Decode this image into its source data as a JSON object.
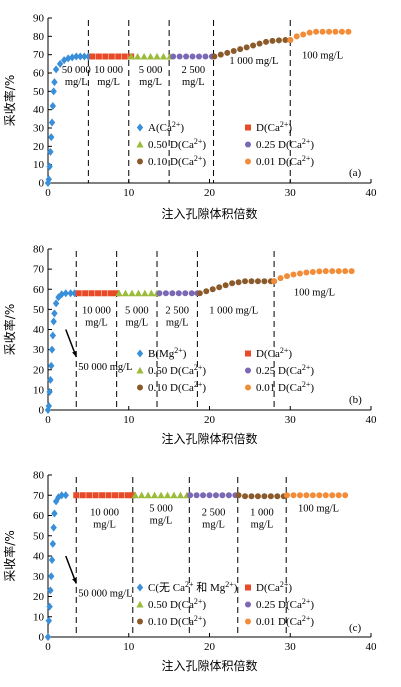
{
  "chart_data": [
    {
      "type": "scatter",
      "panel_label": "(a)",
      "xlabel": "注入孔隙体积倍数",
      "ylabel": "采收率/%",
      "xlim": [
        0,
        40
      ],
      "ylim": [
        0,
        90
      ],
      "xticks": [
        0,
        10,
        20,
        30,
        40
      ],
      "yticks": [
        0,
        10,
        20,
        30,
        40,
        50,
        60,
        70,
        80,
        90
      ],
      "stage_boundaries": [
        5,
        10,
        15,
        20.5,
        30
      ],
      "stage_labels": [
        {
          "lines": [
            "50 000",
            "mg/L"
          ],
          "x": 3.5,
          "y": 60
        },
        {
          "lines": [
            "10 000",
            "mg/L"
          ],
          "x": 7.5,
          "y": 60
        },
        {
          "lines": [
            "5 000",
            "mg/L"
          ],
          "x": 12.7,
          "y": 60
        },
        {
          "lines": [
            "2 500",
            "mg/L"
          ],
          "x": 18,
          "y": 60
        },
        {
          "lines": [
            "1 000 mg/L"
          ],
          "x": 25.5,
          "y": 65
        },
        {
          "lines": [
            "100 mg/L"
          ],
          "x": 34,
          "y": 68
        }
      ],
      "series": [
        {
          "name": "A(Ca²⁺)",
          "color": "#3A8FD9",
          "marker": "diamond",
          "x": [
            0,
            0.1,
            0.2,
            0.3,
            0.4,
            0.5,
            0.6,
            0.7,
            0.8,
            1.0,
            1.5,
            2.0,
            2.5,
            3.0,
            3.5,
            4.0,
            4.5,
            5.0
          ],
          "y": [
            0,
            2,
            9,
            17,
            25,
            33,
            42,
            50,
            55,
            62,
            65,
            67,
            68,
            68.5,
            69,
            69,
            69,
            69
          ]
        },
        {
          "name": "D(Ca²⁺)",
          "color": "#E84A27",
          "marker": "square",
          "x": [
            5.5,
            6.3,
            7.1,
            7.9,
            8.7,
            9.5,
            10.3
          ],
          "y": [
            69,
            69,
            69,
            69,
            69,
            69,
            69
          ]
        },
        {
          "name": "0.50 D(Ca²⁺)",
          "color": "#9BBB3B",
          "marker": "triangle",
          "x": [
            10.3,
            11.1,
            11.9,
            12.7,
            13.5,
            14.3,
            15.1
          ],
          "y": [
            69,
            69,
            69,
            69,
            69,
            69,
            69
          ]
        },
        {
          "name": "0.25 D(Ca²⁺)",
          "color": "#7B68B5",
          "marker": "circle",
          "x": [
            15.5,
            16.3,
            17.1,
            17.9,
            18.7,
            19.5,
            20.3
          ],
          "y": [
            69,
            69,
            69,
            69,
            69,
            69,
            69
          ]
        },
        {
          "name": "0.10 D(Ca²⁺)",
          "color": "#8B5A2B",
          "marker": "circle",
          "x": [
            20.6,
            21.4,
            22.2,
            23.0,
            23.8,
            24.6,
            25.4,
            26.2,
            27.0,
            27.8,
            28.6,
            29.4,
            30.0
          ],
          "y": [
            69,
            70,
            71,
            72,
            73,
            74,
            75,
            76,
            77,
            77.5,
            77.8,
            78,
            78
          ]
        },
        {
          "name": "0.01 D(Ca²⁺)",
          "color": "#F28C38",
          "marker": "circle",
          "x": [
            30.0,
            30.8,
            31.6,
            32.4,
            33.2,
            34.0,
            34.8,
            35.6,
            36.4,
            37.2
          ],
          "y": [
            78,
            80,
            81,
            82,
            82.5,
            82.5,
            82.5,
            82.5,
            82.5,
            82.5
          ]
        }
      ]
    },
    {
      "type": "scatter",
      "panel_label": "(b)",
      "xlabel": "注入孔隙体积倍数",
      "ylabel": "采收率/%",
      "xlim": [
        0,
        40
      ],
      "ylim": [
        0,
        80
      ],
      "xticks": [
        0,
        10,
        20,
        30,
        40
      ],
      "yticks": [
        0,
        10,
        20,
        30,
        40,
        50,
        60,
        70,
        80
      ],
      "stage_boundaries": [
        3.5,
        8.5,
        13.5,
        18.5,
        28
      ],
      "stage_labels": [
        {
          "lines": [
            "10 000",
            "mg/L"
          ],
          "x": 6,
          "y": 48
        },
        {
          "lines": [
            "5 000",
            "mg/L"
          ],
          "x": 11,
          "y": 48
        },
        {
          "lines": [
            "2 500",
            "mg/L"
          ],
          "x": 16,
          "y": 48
        },
        {
          "lines": [
            "1 000 mg/L"
          ],
          "x": 23,
          "y": 48
        },
        {
          "lines": [
            "100 mg/L"
          ],
          "x": 33,
          "y": 57
        }
      ],
      "arrow_label": "50 000 mg/L",
      "series": [
        {
          "name": "B(Mg²⁺)",
          "color": "#3A8FD9",
          "marker": "diamond",
          "x": [
            0,
            0.1,
            0.2,
            0.3,
            0.4,
            0.5,
            0.6,
            0.7,
            0.8,
            1.0,
            1.3,
            1.7,
            2.2,
            2.8,
            3.3
          ],
          "y": [
            0,
            2,
            9,
            15,
            22,
            30,
            37,
            44,
            48,
            53,
            56,
            57.5,
            58,
            58,
            58
          ]
        },
        {
          "name": "D(Ca²⁺)",
          "color": "#E84A27",
          "marker": "square",
          "x": [
            3.8,
            4.6,
            5.4,
            6.2,
            7.0,
            7.8,
            8.5
          ],
          "y": [
            58,
            58,
            58,
            58,
            58,
            58,
            58
          ]
        },
        {
          "name": "0.50 D(Ca²⁺)",
          "color": "#9BBB3B",
          "marker": "triangle",
          "x": [
            8.8,
            9.6,
            10.4,
            11.2,
            12.0,
            12.8,
            13.5
          ],
          "y": [
            58,
            58,
            58,
            58,
            58,
            58,
            58
          ]
        },
        {
          "name": "0.25 D(Ca²⁺)",
          "color": "#7B68B5",
          "marker": "circle",
          "x": [
            13.8,
            14.6,
            15.4,
            16.2,
            17.0,
            17.8,
            18.5
          ],
          "y": [
            58,
            58,
            58,
            58,
            58,
            58,
            58
          ]
        },
        {
          "name": "0.10 D(Ca²⁺)",
          "color": "#8B5A2B",
          "marker": "circle",
          "x": [
            18.8,
            19.6,
            20.4,
            21.2,
            22.0,
            22.8,
            23.6,
            24.4,
            25.2,
            26.0,
            26.8,
            27.6,
            28.0
          ],
          "y": [
            58,
            59,
            60,
            61,
            62,
            63,
            63.5,
            64,
            64,
            64,
            64,
            64,
            64
          ]
        },
        {
          "name": "0.01 D(Ca²⁺)",
          "color": "#F28C38",
          "marker": "circle",
          "x": [
            28.0,
            28.8,
            29.6,
            30.4,
            31.2,
            32.0,
            32.8,
            33.6,
            34.4,
            35.2,
            36.0,
            36.8,
            37.6
          ],
          "y": [
            64,
            65.5,
            66.5,
            67.3,
            67.8,
            68.3,
            68.6,
            68.9,
            69,
            69,
            69,
            69,
            69
          ]
        }
      ]
    },
    {
      "type": "scatter",
      "panel_label": "(c)",
      "xlabel": "注入孔隙体积倍数",
      "ylabel": "采收率/%",
      "xlim": [
        0,
        40
      ],
      "ylim": [
        0,
        80
      ],
      "xticks": [
        0,
        10,
        20,
        30,
        40
      ],
      "yticks": [
        0,
        10,
        20,
        30,
        40,
        50,
        60,
        70,
        80
      ],
      "stage_boundaries": [
        3.5,
        10.5,
        17.5,
        23.5,
        29.5
      ],
      "stage_labels": [
        {
          "lines": [
            "10 000",
            "mg/L"
          ],
          "x": 7,
          "y": 60
        },
        {
          "lines": [
            "5 000",
            "mg/L"
          ],
          "x": 14,
          "y": 62
        },
        {
          "lines": [
            "2 500",
            "mg/L"
          ],
          "x": 20.5,
          "y": 60
        },
        {
          "lines": [
            "1 000",
            "mg/L"
          ],
          "x": 26.5,
          "y": 60
        },
        {
          "lines": [
            "100 mg/L"
          ],
          "x": 33.5,
          "y": 62
        }
      ],
      "arrow_label": "50 000 mg/L",
      "series": [
        {
          "name": "C(无 Ca²⁺ 和 Mg²⁺)",
          "color": "#3A8FD9",
          "marker": "diamond",
          "x": [
            0,
            0.1,
            0.2,
            0.3,
            0.4,
            0.5,
            0.6,
            0.7,
            0.8,
            1.0,
            1.3,
            1.7,
            2.2
          ],
          "y": [
            0,
            8,
            15,
            23,
            30,
            38,
            46,
            54,
            61,
            67,
            69,
            70,
            70
          ]
        },
        {
          "name": "D(Ca²⁺)",
          "color": "#E84A27",
          "marker": "square",
          "x": [
            3.5,
            4.3,
            5.1,
            5.9,
            6.7,
            7.5,
            8.3,
            9.1,
            9.9,
            10.5
          ],
          "y": [
            70,
            70,
            70,
            70,
            70,
            70,
            70,
            70,
            70,
            70
          ]
        },
        {
          "name": "0.50 D(Ca²⁺)",
          "color": "#9BBB3B",
          "marker": "triangle",
          "x": [
            10.8,
            11.6,
            12.4,
            13.2,
            14.0,
            14.8,
            15.6,
            16.4,
            17.2
          ],
          "y": [
            70,
            70,
            70,
            70,
            70,
            70,
            70,
            70,
            70
          ]
        },
        {
          "name": "0.25 D(Ca²⁺)",
          "color": "#7B68B5",
          "marker": "circle",
          "x": [
            17.6,
            18.4,
            19.2,
            20.0,
            20.8,
            21.6,
            22.4,
            23.2
          ],
          "y": [
            70,
            70,
            70,
            70,
            70,
            70,
            70,
            70
          ]
        },
        {
          "name": "0.10 D(Ca²⁺)",
          "color": "#8B5A2B",
          "marker": "circle",
          "x": [
            23.6,
            24.4,
            25.2,
            26.0,
            26.8,
            27.6,
            28.4,
            29.2
          ],
          "y": [
            70,
            69.5,
            69.5,
            69.5,
            69.5,
            69.5,
            69.5,
            69.5
          ]
        },
        {
          "name": "0.01 D(Ca²⁺)",
          "color": "#F28C38",
          "marker": "circle",
          "x": [
            29.6,
            30.4,
            31.2,
            32.0,
            32.8,
            33.6,
            34.4,
            35.2,
            36.0,
            36.8
          ],
          "y": [
            70,
            70,
            70,
            70,
            70,
            70,
            70,
            70,
            70,
            70
          ]
        }
      ]
    }
  ]
}
